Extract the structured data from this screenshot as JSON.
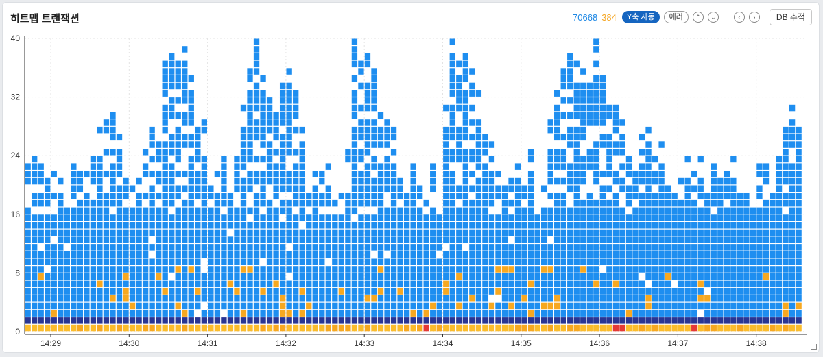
{
  "title": "히트맵 트랜잭션",
  "counts": {
    "normal": "70668",
    "error": "384"
  },
  "toolbar": {
    "y_auto_label": "Y축 자동",
    "error_label": "에러",
    "db_trace_label": "DB 추적"
  },
  "colors": {
    "normal": "#1e8ef0",
    "warn": "#f7a820",
    "error": "#e53935",
    "slow": "#283593",
    "fast": "#fbbc2c",
    "normal_count": "#1e88e5",
    "error_count": "#f5a623"
  },
  "chart_data": {
    "type": "heatmap",
    "title": "",
    "xlabel": "",
    "ylabel": "",
    "ylim": [
      0,
      40
    ],
    "y_ticks": [
      "0",
      "8",
      "16",
      "24",
      "32",
      "40"
    ],
    "x_ticks": [
      "14:29",
      "14:30",
      "14:31",
      "14:32",
      "14:33",
      "14:34",
      "14:35",
      "14:36",
      "14:37",
      "14:38"
    ],
    "x_range": [
      "14:28:40",
      "14:38:35"
    ],
    "grid": true,
    "columns_per_minute": 12,
    "rows": 40,
    "column_tops_sample": [
      22,
      22,
      22,
      20,
      18,
      18,
      16,
      22,
      21,
      19,
      23,
      27,
      28,
      28,
      24,
      20,
      19,
      20,
      22,
      27,
      26,
      36,
      40,
      38,
      36,
      32,
      27,
      25,
      20,
      21,
      22,
      19,
      24,
      27,
      36,
      38,
      35,
      31,
      29,
      32,
      33,
      31,
      28,
      20,
      19,
      21,
      22,
      18,
      15,
      24,
      40,
      36,
      37,
      35,
      29,
      28,
      27,
      20,
      18,
      21,
      19,
      17,
      22,
      14,
      27,
      39,
      36,
      37,
      35,
      29,
      26,
      23,
      18,
      20,
      21,
      19,
      17,
      22,
      15,
      16,
      28,
      32,
      34,
      37,
      38,
      35,
      33,
      40,
      34,
      31,
      29,
      28,
      22,
      21,
      24,
      25,
      24,
      22,
      19,
      18,
      17,
      20,
      19,
      20,
      18
    ],
    "warn_cells_note": "scattered",
    "bottom_rows": {
      "row_0": "fast",
      "row_1": "slow"
    }
  }
}
